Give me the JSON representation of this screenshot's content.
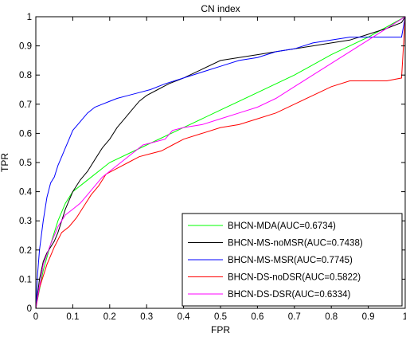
{
  "chart_data": {
    "type": "line",
    "title": "CN index",
    "xlabel": "FPR",
    "ylabel": "TPR",
    "xlim": [
      0,
      1
    ],
    "ylim": [
      0,
      1
    ],
    "xticks": [
      "0",
      "0.1",
      "0.2",
      "0.3",
      "0.4",
      "0.5",
      "0.6",
      "0.7",
      "0.8",
      "0.9",
      "1"
    ],
    "yticks": [
      "0",
      "0.1",
      "0.2",
      "0.3",
      "0.4",
      "0.5",
      "0.6",
      "0.7",
      "0.8",
      "0.9",
      "1"
    ],
    "grid": false,
    "legend_position": "bottom-right",
    "series": [
      {
        "name": "BHCN-MDA(AUC=0.6734)",
        "color": "#00ff00",
        "x": [
          0,
          0.02,
          0.04,
          0.06,
          0.08,
          0.1,
          0.15,
          0.2,
          0.3,
          0.4,
          0.5,
          0.6,
          0.7,
          0.8,
          0.9,
          1.0
        ],
        "y": [
          0,
          0.13,
          0.22,
          0.3,
          0.36,
          0.4,
          0.45,
          0.5,
          0.56,
          0.62,
          0.68,
          0.74,
          0.8,
          0.87,
          0.93,
          1.0
        ]
      },
      {
        "name": "BHCN-MS-noMSR(AUC=0.7438)",
        "color": "#000000",
        "x": [
          0,
          0.01,
          0.02,
          0.03,
          0.04,
          0.05,
          0.06,
          0.07,
          0.08,
          0.1,
          0.12,
          0.14,
          0.16,
          0.18,
          0.2,
          0.22,
          0.24,
          0.26,
          0.28,
          0.3,
          0.33,
          0.36,
          0.4,
          0.45,
          0.5,
          0.55,
          0.6,
          0.65,
          0.7,
          0.75,
          0.8,
          0.85,
          0.9,
          0.95,
          0.99,
          1.0
        ],
        "y": [
          0,
          0.1,
          0.16,
          0.19,
          0.21,
          0.23,
          0.26,
          0.3,
          0.34,
          0.4,
          0.44,
          0.47,
          0.51,
          0.55,
          0.58,
          0.62,
          0.65,
          0.68,
          0.71,
          0.73,
          0.75,
          0.77,
          0.79,
          0.82,
          0.85,
          0.86,
          0.87,
          0.88,
          0.89,
          0.9,
          0.91,
          0.92,
          0.94,
          0.96,
          0.98,
          1.0
        ]
      },
      {
        "name": "BHCN-MS-MSR(AUC=0.7745)",
        "color": "#0000ff",
        "x": [
          0,
          0.005,
          0.01,
          0.02,
          0.03,
          0.04,
          0.05,
          0.06,
          0.07,
          0.08,
          0.09,
          0.1,
          0.12,
          0.14,
          0.16,
          0.18,
          0.2,
          0.22,
          0.25,
          0.28,
          0.31,
          0.35,
          0.4,
          0.45,
          0.5,
          0.55,
          0.6,
          0.65,
          0.7,
          0.75,
          0.8,
          0.85,
          0.9,
          0.95,
          0.99,
          1.0
        ],
        "y": [
          0,
          0.12,
          0.2,
          0.3,
          0.38,
          0.43,
          0.45,
          0.49,
          0.52,
          0.55,
          0.58,
          0.61,
          0.64,
          0.67,
          0.69,
          0.7,
          0.71,
          0.72,
          0.73,
          0.74,
          0.75,
          0.77,
          0.79,
          0.81,
          0.83,
          0.85,
          0.86,
          0.88,
          0.89,
          0.91,
          0.92,
          0.93,
          0.93,
          0.93,
          0.93,
          1.0
        ]
      },
      {
        "name": "BHCN-DS-noDSR(AUC=0.5822)",
        "color": "#ff0000",
        "x": [
          0,
          0.01,
          0.03,
          0.05,
          0.07,
          0.09,
          0.11,
          0.13,
          0.15,
          0.17,
          0.19,
          0.22,
          0.25,
          0.28,
          0.31,
          0.34,
          0.37,
          0.4,
          0.45,
          0.5,
          0.55,
          0.6,
          0.65,
          0.7,
          0.75,
          0.8,
          0.85,
          0.9,
          0.95,
          0.99,
          1.0
        ],
        "y": [
          0,
          0.07,
          0.15,
          0.21,
          0.26,
          0.28,
          0.31,
          0.35,
          0.39,
          0.42,
          0.46,
          0.48,
          0.5,
          0.52,
          0.53,
          0.54,
          0.56,
          0.58,
          0.6,
          0.62,
          0.63,
          0.65,
          0.67,
          0.7,
          0.73,
          0.76,
          0.78,
          0.78,
          0.78,
          0.79,
          1.0
        ]
      },
      {
        "name": "BHCN-DS-DSR(AUC=0.6334)",
        "color": "#ff00ff",
        "x": [
          0,
          0.02,
          0.04,
          0.06,
          0.08,
          0.1,
          0.12,
          0.14,
          0.16,
          0.18,
          0.2,
          0.23,
          0.26,
          0.29,
          0.32,
          0.35,
          0.37,
          0.4,
          0.45,
          0.5,
          0.55,
          0.6,
          0.65,
          0.7,
          0.75,
          0.8,
          0.85,
          0.9,
          0.95,
          1.0
        ],
        "y": [
          0,
          0.15,
          0.22,
          0.28,
          0.32,
          0.34,
          0.36,
          0.39,
          0.42,
          0.45,
          0.47,
          0.5,
          0.53,
          0.56,
          0.57,
          0.58,
          0.61,
          0.62,
          0.63,
          0.65,
          0.67,
          0.69,
          0.72,
          0.76,
          0.8,
          0.84,
          0.88,
          0.92,
          0.96,
          1.0
        ]
      }
    ]
  }
}
